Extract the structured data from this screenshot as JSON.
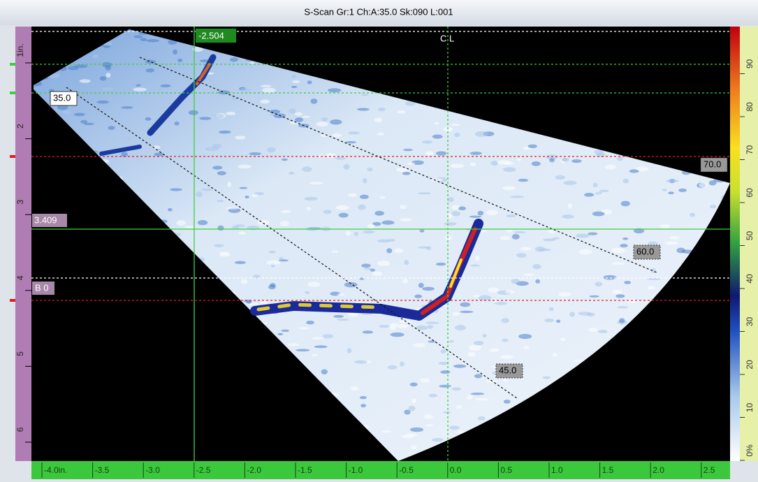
{
  "title": "S-Scan Gr:1 Ch:A:35.0 Sk:090 L:001",
  "cursors": {
    "index_reference": "-2.504",
    "depth_reference": "3.409",
    "depth_measure": "B 0",
    "center_line": "C L"
  },
  "angles": [
    "35.0",
    "45.0",
    "60.0",
    "70.0"
  ],
  "depth_ruler": {
    "ticks": [
      "1in.",
      "2",
      "3",
      "4",
      "5",
      "6"
    ]
  },
  "index_ruler": {
    "ticks": [
      "-4.0in.",
      "-3.5",
      "-3.0",
      "-2.5",
      "-2.0",
      "-1.5",
      "-1.0",
      "-0.5",
      "0.0",
      "0.5",
      "1.0",
      "1.5",
      "2.0",
      "2.5"
    ]
  },
  "amplitude_scale": {
    "ticks": [
      "0%",
      "10",
      "20",
      "30",
      "40",
      "50",
      "60",
      "70",
      "80",
      "90"
    ]
  }
}
